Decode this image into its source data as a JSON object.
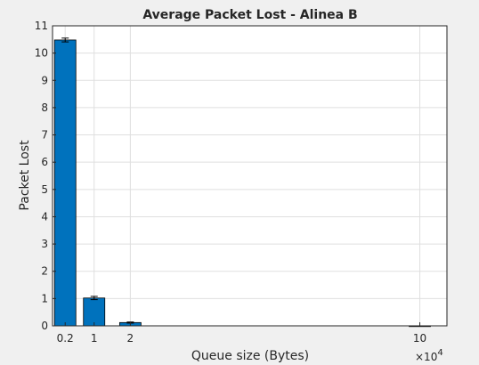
{
  "colors": {
    "bar": "#0072bd",
    "background": "#f0f0f0",
    "plot_area": "#ffffff",
    "grid": "#dfdfdf"
  },
  "chart_data": {
    "type": "bar",
    "title": "Average Packet Lost - Alinea B",
    "xlabel": "Queue size (Bytes)",
    "ylabel": "Packet Lost",
    "x_exponent_label": "×10",
    "x_exponent_power": "4",
    "categories": [
      "0.2",
      "1",
      "2",
      "10"
    ],
    "x": [
      0.2,
      1,
      2,
      10
    ],
    "values": [
      10.48,
      1.02,
      0.12,
      0.0
    ],
    "error": [
      0.07,
      0.06,
      0.02,
      0.0
    ],
    "ylim": [
      0,
      11
    ],
    "xlim": [
      -0.15,
      10.75
    ],
    "yticks": [
      0,
      1,
      2,
      3,
      4,
      5,
      6,
      7,
      8,
      9,
      10,
      11
    ],
    "xticks": [
      0.2,
      1,
      2,
      10
    ],
    "grid": true
  }
}
